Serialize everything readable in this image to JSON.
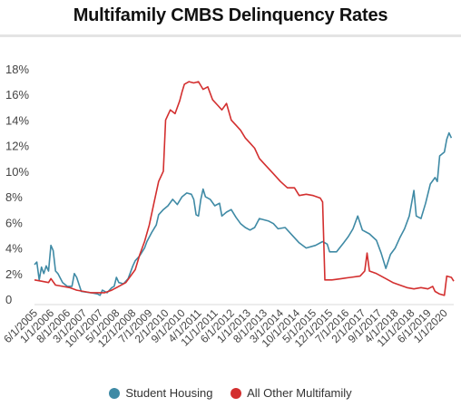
{
  "chart_data": {
    "type": "line",
    "title": "Multifamily CMBS Delinquency Rates",
    "xlabel": "",
    "ylabel": "",
    "ylim": [
      0,
      18
    ],
    "yticks": [
      "0",
      "2%",
      "4%",
      "6%",
      "8%",
      "10%",
      "12%",
      "14%",
      "16%",
      "18%"
    ],
    "grid": false,
    "legend_position": "bottom",
    "x_range": [
      "2005-06",
      "2020-05"
    ],
    "x_tick_labels": [
      "6/1/2005",
      "1/1/2006",
      "8/1/2006",
      "3/1/2007",
      "10/1/2007",
      "5/1/2008",
      "12/1/2008",
      "7/1/2009",
      "2/1/2010",
      "9/1/2010",
      "4/1/2011",
      "11/1/2011",
      "6/1/2012",
      "1/1/2013",
      "8/1/2013",
      "3/1/2014",
      "10/1/2014",
      "5/1/2015",
      "12/1/2015",
      "7/1/2016",
      "2/1/2017",
      "9/1/2017",
      "4/1/2018",
      "11/1/2018",
      "6/1/2019",
      "1/1/2020"
    ],
    "series": [
      {
        "name": "Student Housing",
        "color": "#3f8aa5",
        "points": [
          [
            "2005-06",
            2.7
          ],
          [
            "2005-07",
            2.9
          ],
          [
            "2005-08",
            1.5
          ],
          [
            "2005-09",
            2.5
          ],
          [
            "2005-10",
            2.0
          ],
          [
            "2005-11",
            2.6
          ],
          [
            "2005-12",
            2.2
          ],
          [
            "2006-01",
            4.2
          ],
          [
            "2006-02",
            3.8
          ],
          [
            "2006-03",
            2.2
          ],
          [
            "2006-04",
            2.0
          ],
          [
            "2006-06",
            1.3
          ],
          [
            "2006-08",
            1.0
          ],
          [
            "2006-10",
            1.0
          ],
          [
            "2006-11",
            2.0
          ],
          [
            "2006-12",
            1.7
          ],
          [
            "2007-02",
            0.6
          ],
          [
            "2007-06",
            0.5
          ],
          [
            "2007-09",
            0.4
          ],
          [
            "2007-10",
            0.3
          ],
          [
            "2007-11",
            0.7
          ],
          [
            "2008-01",
            0.5
          ],
          [
            "2008-03",
            0.9
          ],
          [
            "2008-04",
            1.0
          ],
          [
            "2008-05",
            1.7
          ],
          [
            "2008-06",
            1.3
          ],
          [
            "2008-08",
            1.2
          ],
          [
            "2008-10",
            1.6
          ],
          [
            "2008-12",
            2.6
          ],
          [
            "2009-01",
            3.0
          ],
          [
            "2009-03",
            3.4
          ],
          [
            "2009-05",
            4.0
          ],
          [
            "2009-06",
            4.5
          ],
          [
            "2009-08",
            5.2
          ],
          [
            "2009-10",
            5.8
          ],
          [
            "2009-11",
            6.6
          ],
          [
            "2010-01",
            7.0
          ],
          [
            "2010-03",
            7.3
          ],
          [
            "2010-05",
            7.8
          ],
          [
            "2010-07",
            7.4
          ],
          [
            "2010-09",
            8.0
          ],
          [
            "2010-11",
            8.3
          ],
          [
            "2011-01",
            8.2
          ],
          [
            "2011-02",
            7.8
          ],
          [
            "2011-03",
            6.6
          ],
          [
            "2011-04",
            6.5
          ],
          [
            "2011-05",
            7.8
          ],
          [
            "2011-06",
            8.6
          ],
          [
            "2011-07",
            8.0
          ],
          [
            "2011-09",
            7.8
          ],
          [
            "2011-11",
            7.3
          ],
          [
            "2012-01",
            7.5
          ],
          [
            "2012-02",
            6.5
          ],
          [
            "2012-04",
            6.8
          ],
          [
            "2012-06",
            7.0
          ],
          [
            "2012-08",
            6.4
          ],
          [
            "2012-10",
            5.9
          ],
          [
            "2012-12",
            5.6
          ],
          [
            "2013-02",
            5.4
          ],
          [
            "2013-04",
            5.6
          ],
          [
            "2013-06",
            6.3
          ],
          [
            "2013-08",
            6.2
          ],
          [
            "2013-10",
            6.1
          ],
          [
            "2013-12",
            5.9
          ],
          [
            "2014-02",
            5.5
          ],
          [
            "2014-05",
            5.6
          ],
          [
            "2014-08",
            5.0
          ],
          [
            "2014-11",
            4.4
          ],
          [
            "2015-02",
            4.0
          ],
          [
            "2015-06",
            4.2
          ],
          [
            "2015-09",
            4.5
          ],
          [
            "2015-11",
            4.3
          ],
          [
            "2015-12",
            3.7
          ],
          [
            "2016-03",
            3.7
          ],
          [
            "2016-06",
            4.4
          ],
          [
            "2016-08",
            4.9
          ],
          [
            "2016-10",
            5.5
          ],
          [
            "2016-12",
            6.5
          ],
          [
            "2017-02",
            5.4
          ],
          [
            "2017-05",
            5.1
          ],
          [
            "2017-08",
            4.6
          ],
          [
            "2017-10",
            3.6
          ],
          [
            "2017-12",
            2.4
          ],
          [
            "2018-02",
            3.5
          ],
          [
            "2018-04",
            4.0
          ],
          [
            "2018-06",
            4.8
          ],
          [
            "2018-08",
            5.5
          ],
          [
            "2018-10",
            6.5
          ],
          [
            "2018-12",
            8.5
          ],
          [
            "2019-01",
            6.5
          ],
          [
            "2019-03",
            6.3
          ],
          [
            "2019-05",
            7.5
          ],
          [
            "2019-07",
            9.0
          ],
          [
            "2019-09",
            9.5
          ],
          [
            "2019-10",
            9.2
          ],
          [
            "2019-11",
            11.2
          ],
          [
            "2020-01",
            11.5
          ],
          [
            "2020-02",
            12.5
          ],
          [
            "2020-03",
            13.0
          ],
          [
            "2020-04",
            12.6
          ]
        ]
      },
      {
        "name": "All Other Multifamily",
        "color": "#d32f2f",
        "points": [
          [
            "2005-06",
            1.5
          ],
          [
            "2005-09",
            1.4
          ],
          [
            "2005-12",
            1.3
          ],
          [
            "2006-01",
            1.6
          ],
          [
            "2006-03",
            1.1
          ],
          [
            "2006-06",
            1.0
          ],
          [
            "2006-09",
            0.9
          ],
          [
            "2006-12",
            0.7
          ],
          [
            "2007-03",
            0.6
          ],
          [
            "2007-06",
            0.5
          ],
          [
            "2007-09",
            0.5
          ],
          [
            "2007-12",
            0.5
          ],
          [
            "2008-03",
            0.7
          ],
          [
            "2008-06",
            1.0
          ],
          [
            "2008-09",
            1.3
          ],
          [
            "2008-11",
            1.8
          ],
          [
            "2009-01",
            2.3
          ],
          [
            "2009-03",
            3.5
          ],
          [
            "2009-05",
            4.5
          ],
          [
            "2009-07",
            5.8
          ],
          [
            "2009-09",
            7.5
          ],
          [
            "2009-11",
            9.2
          ],
          [
            "2010-01",
            10.0
          ],
          [
            "2010-02",
            14.0
          ],
          [
            "2010-04",
            14.8
          ],
          [
            "2010-06",
            14.5
          ],
          [
            "2010-08",
            15.5
          ],
          [
            "2010-09",
            16.2
          ],
          [
            "2010-10",
            16.8
          ],
          [
            "2010-12",
            17.0
          ],
          [
            "2011-02",
            16.9
          ],
          [
            "2011-04",
            17.0
          ],
          [
            "2011-06",
            16.4
          ],
          [
            "2011-08",
            16.6
          ],
          [
            "2011-10",
            15.6
          ],
          [
            "2011-12",
            15.2
          ],
          [
            "2012-02",
            14.8
          ],
          [
            "2012-04",
            15.3
          ],
          [
            "2012-06",
            14.0
          ],
          [
            "2012-08",
            13.6
          ],
          [
            "2012-10",
            13.2
          ],
          [
            "2012-12",
            12.6
          ],
          [
            "2013-02",
            12.2
          ],
          [
            "2013-04",
            11.8
          ],
          [
            "2013-06",
            11.0
          ],
          [
            "2013-08",
            10.6
          ],
          [
            "2013-10",
            10.2
          ],
          [
            "2013-12",
            9.8
          ],
          [
            "2014-03",
            9.2
          ],
          [
            "2014-06",
            8.7
          ],
          [
            "2014-09",
            8.7
          ],
          [
            "2014-11",
            8.1
          ],
          [
            "2015-02",
            8.2
          ],
          [
            "2015-05",
            8.1
          ],
          [
            "2015-08",
            7.9
          ],
          [
            "2015-09",
            7.6
          ],
          [
            "2015-10",
            1.5
          ],
          [
            "2016-01",
            1.5
          ],
          [
            "2016-05",
            1.6
          ],
          [
            "2016-09",
            1.7
          ],
          [
            "2017-01",
            1.8
          ],
          [
            "2017-03",
            2.2
          ],
          [
            "2017-04",
            3.6
          ],
          [
            "2017-05",
            2.2
          ],
          [
            "2017-08",
            2.0
          ],
          [
            "2017-12",
            1.6
          ],
          [
            "2018-03",
            1.3
          ],
          [
            "2018-06",
            1.1
          ],
          [
            "2018-09",
            0.9
          ],
          [
            "2018-12",
            0.8
          ],
          [
            "2019-03",
            0.9
          ],
          [
            "2019-06",
            0.8
          ],
          [
            "2019-08",
            1.0
          ],
          [
            "2019-09",
            0.6
          ],
          [
            "2019-11",
            0.4
          ],
          [
            "2020-01",
            0.3
          ],
          [
            "2020-02",
            1.8
          ],
          [
            "2020-04",
            1.7
          ],
          [
            "2020-05",
            1.4
          ]
        ]
      }
    ]
  }
}
